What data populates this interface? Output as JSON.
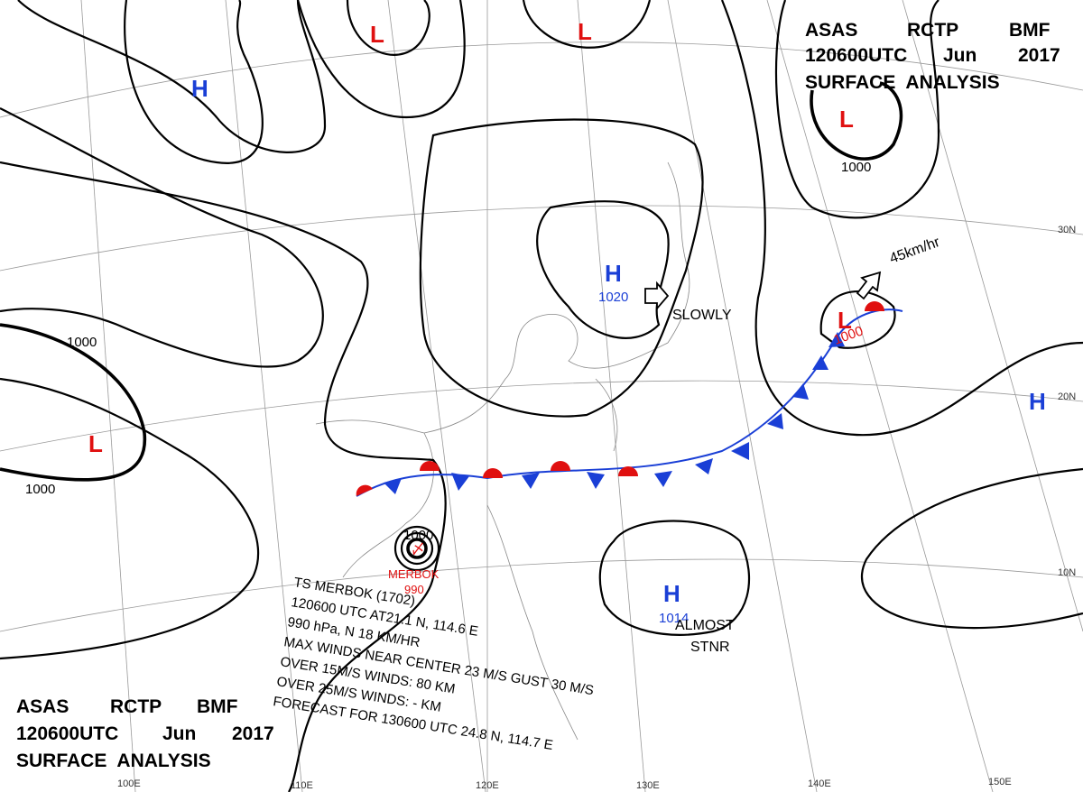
{
  "header_top": {
    "line1": [
      "ASAS",
      "RCTP",
      "BMF"
    ],
    "line2": [
      "120600UTC",
      "Jun",
      "2017"
    ],
    "line3": "SURFACE ANALYSIS"
  },
  "header_bottom": {
    "line1": [
      "ASAS",
      "RCTP",
      "BMF"
    ],
    "line2": [
      "120600UTC",
      "Jun",
      "2017"
    ],
    "line3": "SURFACE ANALYSIS"
  },
  "systems": [
    {
      "symbol": "H"
    },
    {
      "symbol": "L"
    },
    {
      "symbol": "L"
    },
    {
      "symbol": "L"
    },
    {
      "symbol": "L"
    },
    {
      "symbol": "H",
      "pressure": "1020"
    },
    {
      "symbol": "L",
      "pressure": "1000"
    },
    {
      "symbol": "H"
    },
    {
      "symbol": "H",
      "pressure": "1014"
    }
  ],
  "isobar_labels": [
    "1000",
    "1000",
    "1000",
    "1000"
  ],
  "typhoon": {
    "name": "MERBOK",
    "pressure": "990",
    "text": [
      "TS MERBOK (1702)",
      "120600 UTC AT21.1 N, 114.6 E",
      "990 hPa, N 18 KM/HR",
      "MAX WINDS NEAR CENTER 23 M/S GUST 30 M/S",
      "OVER 15M/S WINDS: 80 KM",
      "OVER 25M/S WINDS: - KM",
      "FORECAST FOR 130600 UTC 24.8 N, 114.7 E"
    ]
  },
  "movements": [
    "SLOWLY",
    "45km/hr",
    "ALMOST",
    "STNR"
  ],
  "longitudes": [
    "100E",
    "110E",
    "120E",
    "130E",
    "140E",
    "150E"
  ],
  "latitudes": [
    "30N",
    "20N",
    "10N"
  ]
}
